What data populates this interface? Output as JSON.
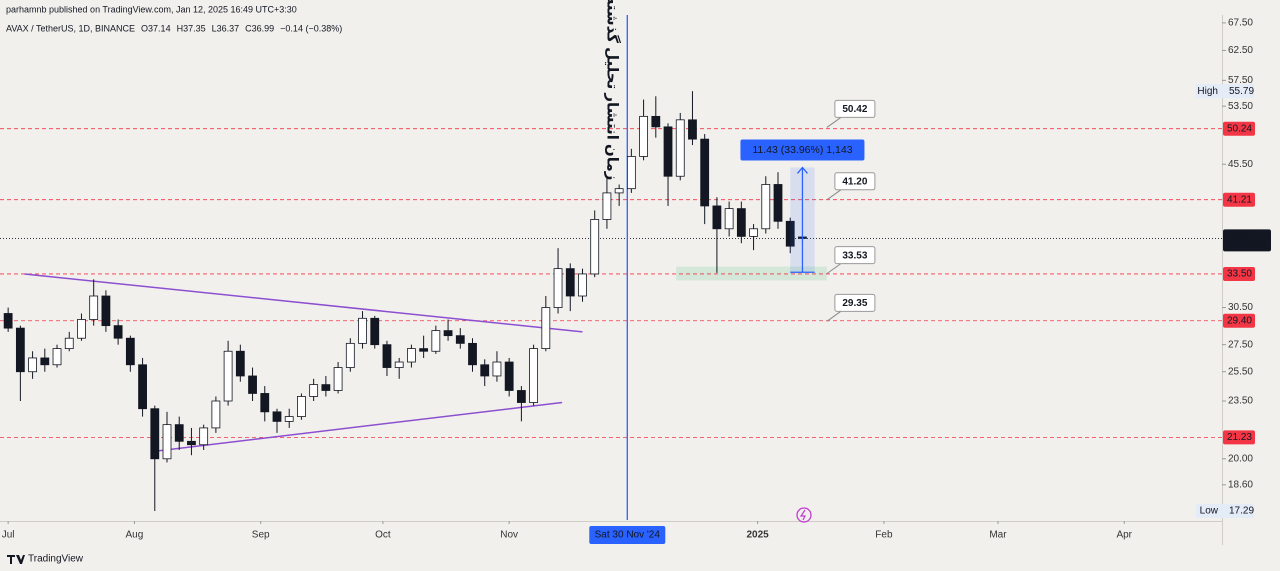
{
  "header": {
    "publisher": "parhamnb published on TradingView.com, Jan 12, 2025 16:49 UTC+3:30",
    "symbol": "AVAX / TetherUS, 1D, BINANCE",
    "ohlc": [
      "O37.14",
      "H37.35",
      "L36.37",
      "C36.99"
    ],
    "change": "−0.14 (−0.38%)"
  },
  "chart_data": {
    "type": "candlestick",
    "log_scale": true,
    "grid": false,
    "up_color": "#ffffff",
    "down_color": "#131722",
    "wick_color": "#131722",
    "x": [
      "2024-07-01",
      "2024-07-04",
      "2024-07-07",
      "2024-07-10",
      "2024-07-13",
      "2024-07-16",
      "2024-07-19",
      "2024-07-22",
      "2024-07-25",
      "2024-07-28",
      "2024-07-31",
      "2024-08-03",
      "2024-08-06",
      "2024-08-09",
      "2024-08-12",
      "2024-08-15",
      "2024-08-18",
      "2024-08-21",
      "2024-08-24",
      "2024-08-27",
      "2024-08-30",
      "2024-09-02",
      "2024-09-05",
      "2024-09-08",
      "2024-09-11",
      "2024-09-14",
      "2024-09-17",
      "2024-09-20",
      "2024-09-23",
      "2024-09-26",
      "2024-09-29",
      "2024-10-02",
      "2024-10-05",
      "2024-10-08",
      "2024-10-11",
      "2024-10-14",
      "2024-10-17",
      "2024-10-20",
      "2024-10-23",
      "2024-10-26",
      "2024-10-29",
      "2024-11-01",
      "2024-11-04",
      "2024-11-07",
      "2024-11-10",
      "2024-11-13",
      "2024-11-16",
      "2024-11-19",
      "2024-11-22",
      "2024-11-25",
      "2024-11-28",
      "2024-12-01",
      "2024-12-04",
      "2024-12-07",
      "2024-12-10",
      "2024-12-13",
      "2024-12-16",
      "2024-12-19",
      "2024-12-22",
      "2024-12-25",
      "2024-12-28",
      "2024-12-31",
      "2025-01-03",
      "2025-01-06",
      "2025-01-09",
      "2025-01-12"
    ],
    "open": [
      30.0,
      28.8,
      25.5,
      26.5,
      26.0,
      27.2,
      28.0,
      29.5,
      31.5,
      29.0,
      28.0,
      26.0,
      23.0,
      20.0,
      22.0,
      21.0,
      20.8,
      21.8,
      23.5,
      27.0,
      25.2,
      24.0,
      22.8,
      22.2,
      22.5,
      23.8,
      24.6,
      24.2,
      25.8,
      27.6,
      29.6,
      27.5,
      25.8,
      26.2,
      27.2,
      27.0,
      28.6,
      28.2,
      27.6,
      26.0,
      25.2,
      26.2,
      24.2,
      23.4,
      27.2,
      30.5,
      34.0,
      31.5,
      33.5,
      39.0,
      42.0,
      42.5,
      46.5,
      52.0,
      50.5,
      44.0,
      51.5,
      48.8,
      40.5,
      38.0,
      40.2,
      37.2,
      38.0,
      43.0,
      38.8,
      37.14
    ],
    "high": [
      30.5,
      29.0,
      27.0,
      27.2,
      27.5,
      28.5,
      30.0,
      33.0,
      32.0,
      29.5,
      28.2,
      26.5,
      23.2,
      22.8,
      22.5,
      21.8,
      22.0,
      23.8,
      27.8,
      27.5,
      25.8,
      24.5,
      23.0,
      23.0,
      24.0,
      25.0,
      25.2,
      26.2,
      28.0,
      30.2,
      29.8,
      27.8,
      26.5,
      27.5,
      28.2,
      29.0,
      29.5,
      28.8,
      28.0,
      26.4,
      27.0,
      26.5,
      24.5,
      27.5,
      31.5,
      36.0,
      34.5,
      34.0,
      40.0,
      44.0,
      43.0,
      47.5,
      54.5,
      55.0,
      51.0,
      52.5,
      55.79,
      49.5,
      41.5,
      41.0,
      41.0,
      38.5,
      44.0,
      44.5,
      39.2,
      37.35
    ],
    "low": [
      28.5,
      23.5,
      25.0,
      25.5,
      25.8,
      27.0,
      27.8,
      29.0,
      28.5,
      27.5,
      25.5,
      22.5,
      17.29,
      19.8,
      20.5,
      20.2,
      20.5,
      21.5,
      23.2,
      24.8,
      23.5,
      22.2,
      21.5,
      21.8,
      22.3,
      23.5,
      23.8,
      24.0,
      25.5,
      27.2,
      27.2,
      25.2,
      25.0,
      25.8,
      26.5,
      26.8,
      27.8,
      27.2,
      25.5,
      24.5,
      24.8,
      23.8,
      22.2,
      23.2,
      27.0,
      30.0,
      30.2,
      31.0,
      33.2,
      38.0,
      40.5,
      42.0,
      46.0,
      49.0,
      40.5,
      43.5,
      48.0,
      38.5,
      33.6,
      37.2,
      36.5,
      35.8,
      37.5,
      38.0,
      35.5,
      36.37
    ],
    "close": [
      28.8,
      25.5,
      26.5,
      26.0,
      27.2,
      28.0,
      29.5,
      31.5,
      29.0,
      28.0,
      26.0,
      23.0,
      20.0,
      22.0,
      21.0,
      20.8,
      21.8,
      23.5,
      27.0,
      25.2,
      24.0,
      22.8,
      22.2,
      22.5,
      23.8,
      24.6,
      24.2,
      25.8,
      27.6,
      29.6,
      27.5,
      25.8,
      26.2,
      27.2,
      27.0,
      28.6,
      28.2,
      27.6,
      26.0,
      25.2,
      26.2,
      24.2,
      23.4,
      27.2,
      30.5,
      34.0,
      31.5,
      33.5,
      39.0,
      42.0,
      42.5,
      46.5,
      52.0,
      50.5,
      44.0,
      51.5,
      48.8,
      40.5,
      38.0,
      40.2,
      37.2,
      38.0,
      43.0,
      38.8,
      36.2,
      36.99
    ],
    "xlim": [
      "2024-06-29",
      "2025-04-25"
    ],
    "xticks": [
      {
        "value": "2024-07-01",
        "label": "Jul"
      },
      {
        "value": "2024-08-01",
        "label": "Aug"
      },
      {
        "value": "2024-09-01",
        "label": "Sep"
      },
      {
        "value": "2024-10-01",
        "label": "Oct"
      },
      {
        "value": "2024-11-01",
        "label": "Nov"
      },
      {
        "value": "2025-01-01",
        "label": "2025"
      },
      {
        "value": "2025-02-01",
        "label": "Feb"
      },
      {
        "value": "2025-03-01",
        "label": "Mar"
      },
      {
        "value": "2025-04-01",
        "label": "Apr"
      }
    ],
    "ylim": [
      16.86,
      69.0
    ],
    "yticks": [
      {
        "value": 67.5,
        "label": "67.50"
      },
      {
        "value": 62.5,
        "label": "62.50"
      },
      {
        "value": 57.5,
        "label": "57.50"
      },
      {
        "value": 53.5,
        "label": "53.50"
      },
      {
        "value": 45.5,
        "label": "45.50"
      },
      {
        "value": 30.5,
        "label": "30.50"
      },
      {
        "value": 27.5,
        "label": "27.50"
      },
      {
        "value": 25.5,
        "label": "25.50"
      },
      {
        "value": 23.5,
        "label": "23.50"
      },
      {
        "value": 20,
        "label": "20.00"
      },
      {
        "value": 18.6,
        "label": "18.60"
      }
    ],
    "level_color": "#f23645",
    "levels": [
      {
        "value": 50.24,
        "label": "50.24"
      },
      {
        "value": 41.21,
        "label": "41.21"
      },
      {
        "value": 33.5,
        "label": "33.50"
      },
      {
        "value": 29.4,
        "label": "29.40"
      },
      {
        "value": 21.23,
        "label": "21.23"
      }
    ],
    "current_price": {
      "value": 36.99,
      "label": "36.99",
      "countdown": "10:40:23"
    },
    "annotation_x": "2025-01-18",
    "annotations": [
      {
        "value": 50.42,
        "label": "50.42"
      },
      {
        "value": 41.2,
        "label": "41.20"
      },
      {
        "value": 33.53,
        "label": "33.53"
      },
      {
        "value": 29.35,
        "label": "29.35"
      }
    ],
    "high_label": {
      "text": "High",
      "value": 55.79,
      "label": "55.79"
    },
    "low_label": {
      "text": "Low",
      "value": 17.29,
      "label": "17.29"
    },
    "trendline_color": "#8c4fd0",
    "trendlines": [
      {
        "x": [
          "2024-07-05",
          "2024-11-19"
        ],
        "y": [
          33.5,
          28.5
        ]
      },
      {
        "x": [
          "2024-08-05",
          "2024-11-14"
        ],
        "y": [
          20.4,
          23.4
        ]
      }
    ],
    "event_line": {
      "x": "2024-11-30",
      "label": "Sat 30 Nov '24",
      "note": "زمان انتشار تحلیل گذشته",
      "color": "#2962ff"
    },
    "measure": {
      "x": [
        "2025-01-09",
        "2025-01-15"
      ],
      "y": [
        33.66,
        45.09
      ],
      "label": "11.43 (33.96%) 1,143",
      "color": "#2962ff"
    },
    "zone": {
      "x": [
        "2024-12-12",
        "2025-01-18"
      ],
      "y": [
        32.9,
        34.2
      ],
      "color": "#cfe5d3"
    }
  },
  "footer": {
    "brand": "TradingView"
  }
}
